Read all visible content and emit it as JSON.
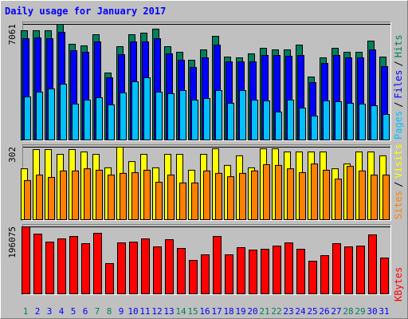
{
  "chart_data": [
    {
      "type": "bar",
      "title": "Daily usage for January 2017",
      "ylim": [
        0,
        7061
      ],
      "yticks": [
        7061
      ],
      "legend_separator": "/",
      "series": [
        {
          "name": "Hits",
          "color": "#00805c",
          "values": [
            6672,
            6672,
            6672,
            7061,
            5844,
            5747,
            6428,
            4091,
            5698,
            6428,
            6526,
            6769,
            5698,
            5357,
            4870,
            5503,
            6331,
            5065,
            5016,
            5260,
            5600,
            5503,
            5503,
            5795,
            3847,
            5016,
            5600,
            5357,
            5357,
            6039,
            5065
          ]
        },
        {
          "name": "Files",
          "color": "#0000ff",
          "values": [
            6185,
            6234,
            6185,
            6574,
            5454,
            5357,
            5990,
            3798,
            5211,
            5990,
            5990,
            6185,
            5260,
            4870,
            4431,
            5016,
            5795,
            4772,
            4772,
            4772,
            5162,
            5162,
            5113,
            5162,
            3506,
            4675,
            5162,
            5016,
            5016,
            5503,
            4480
          ]
        },
        {
          "name": "Pages",
          "color": "#00c0ff",
          "values": [
            2630,
            2922,
            3117,
            3409,
            2191,
            2435,
            2581,
            2143,
            2873,
            3555,
            3798,
            2922,
            2825,
            3019,
            2435,
            2532,
            3019,
            2240,
            3019,
            2435,
            2386,
            1704,
            2435,
            1948,
            1461,
            2386,
            2337,
            2240,
            2191,
            2094,
            1558
          ]
        }
      ]
    },
    {
      "type": "bar",
      "ylim": [
        0,
        302
      ],
      "yticks": [
        302
      ],
      "legend_separator": "/",
      "series": [
        {
          "name": "Visits",
          "color": "#ffff00",
          "values": [
            212,
            292,
            292,
            272,
            292,
            282,
            272,
            216,
            302,
            242,
            272,
            216,
            272,
            272,
            206,
            272,
            295,
            226,
            266,
            216,
            295,
            295,
            282,
            282,
            282,
            282,
            212,
            232,
            282,
            282,
            266
          ]
        },
        {
          "name": "Sites",
          "color": "#ff8000",
          "values": [
            163,
            186,
            176,
            203,
            203,
            212,
            206,
            186,
            193,
            196,
            206,
            156,
            186,
            153,
            153,
            203,
            193,
            179,
            193,
            203,
            229,
            226,
            212,
            196,
            232,
            206,
            169,
            222,
            203,
            186,
            186
          ]
        }
      ]
    },
    {
      "type": "bar",
      "ylim": [
        0,
        196075
      ],
      "yticks": [
        196075
      ],
      "categories": [
        "1",
        "2",
        "3",
        "4",
        "5",
        "6",
        "7",
        "8",
        "9",
        "10",
        "11",
        "12",
        "13",
        "14",
        "15",
        "16",
        "17",
        "18",
        "19",
        "20",
        "21",
        "22",
        "23",
        "24",
        "25",
        "26",
        "27",
        "28",
        "29",
        "30",
        "31"
      ],
      "x_label_colors": [
        "#00805c",
        "#0000ff",
        "#0000ff",
        "#0000ff",
        "#0000ff",
        "#0000ff",
        "#00805c",
        "#00805c",
        "#0000ff",
        "#0000ff",
        "#0000ff",
        "#0000ff",
        "#0000ff",
        "#00805c",
        "#00805c",
        "#0000ff",
        "#0000ff",
        "#0000ff",
        "#0000ff",
        "#0000ff",
        "#00805c",
        "#00805c",
        "#0000ff",
        "#0000ff",
        "#0000ff",
        "#0000ff",
        "#0000ff",
        "#00805c",
        "#00805c",
        "#0000ff",
        "#0000ff"
      ],
      "series": [
        {
          "name": "KBytes",
          "color": "#ff0000",
          "values": [
            196075,
            175050,
            151710,
            161046,
            168048,
            147042,
            177384,
            88692,
            149376,
            151710,
            161046,
            137706,
            158712,
            133038,
            98028,
            114366,
            168048,
            114366,
            135372,
            128370,
            130704,
            140040,
            149376,
            130704,
            95694,
            112032,
            147042,
            137706,
            140040,
            172716,
            105030
          ]
        }
      ]
    }
  ]
}
